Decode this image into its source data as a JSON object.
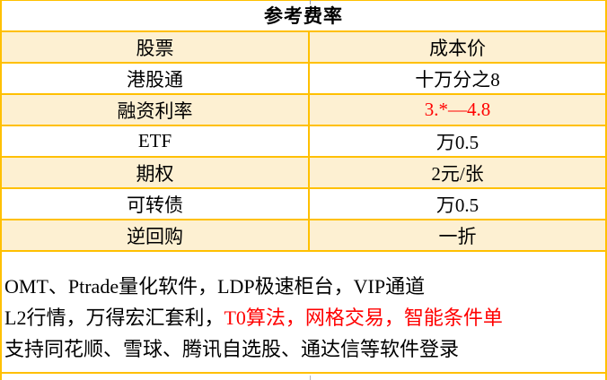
{
  "table": {
    "title": "参考费率",
    "columns_hint": "label | value",
    "rows": [
      {
        "label": "股票",
        "value": "成本价"
      },
      {
        "label": "港股通",
        "value": "十万分之8"
      },
      {
        "label": "融资利率",
        "value": "3.*—4.8"
      },
      {
        "label": "ETF",
        "value": "万0.5"
      },
      {
        "label": "期权",
        "value": "2元/张"
      },
      {
        "label": "可转债",
        "value": "万0.5"
      },
      {
        "label": "逆回购",
        "value": "一折"
      }
    ]
  },
  "notes": {
    "line1": "OMT、Ptrade量化软件，LDP极速柜台，VIP通道",
    "line2_black": "L2行情，万得宏汇套利，",
    "line2_red": "T0算法，网格交易，智能条件单",
    "line3": "支持同花顺、雪球、腾讯自选股、通达信等软件登录"
  },
  "colors": {
    "grid_border": "#FFC000",
    "shaded_row_fill": "#FDF0D2",
    "highlight_text": "#FF0000",
    "default_text": "#000000",
    "background": "#FFFFFF"
  }
}
